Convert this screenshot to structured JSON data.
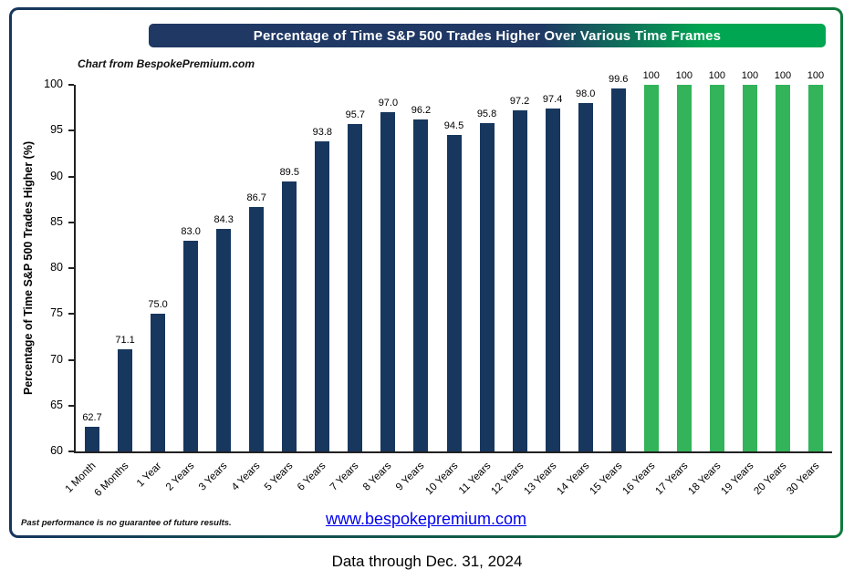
{
  "header": {
    "title": "Percentage of Time S&P 500 Trades Higher Over Various Time Frames"
  },
  "annotations": {
    "source_note": "Chart from BespokePremium.com",
    "footnote": "Past performance is no guarantee of future results.",
    "link": "www.bespokepremium.com",
    "caption": "Data through Dec. 31, 2024"
  },
  "colors": {
    "frame_left": "#16365C",
    "frame_right": "#0E7A3C",
    "title_gradient_left": "#1F3864",
    "title_gradient_right": "#00A651",
    "bar_navy": "#17375E",
    "bar_green": "#33B35A",
    "link_blue": "#0000EE"
  },
  "chart_data": {
    "type": "bar",
    "title": "Percentage of Time S&P 500 Trades Higher Over Various Time Frames",
    "xlabel": "",
    "ylabel": "Percentage of Time S&P 500 Trades Higher (%)",
    "ylim": [
      60,
      100
    ],
    "yticks": [
      60,
      65,
      70,
      75,
      80,
      85,
      90,
      95,
      100
    ],
    "grid": false,
    "legend": null,
    "categories": [
      "1 Month",
      "6 Months",
      "1 Year",
      "2 Years",
      "3 Years",
      "4 Years",
      "5 Years",
      "6 Years",
      "7 Years",
      "8 Years",
      "9 Years",
      "10 Years",
      "11 Years",
      "12 Years",
      "13 Years",
      "14 Years",
      "15 Years",
      "16 Years",
      "17 Years",
      "18 Years",
      "19 Years",
      "20 Years",
      "30 Years"
    ],
    "values": [
      62.7,
      71.1,
      75.0,
      83.0,
      84.3,
      86.7,
      89.5,
      93.8,
      95.7,
      97.0,
      96.2,
      94.5,
      95.8,
      97.2,
      97.4,
      98.0,
      99.6,
      100,
      100,
      100,
      100,
      100,
      100
    ],
    "value_labels": [
      "62.7",
      "71.1",
      "75.0",
      "83.0",
      "84.3",
      "86.7",
      "89.5",
      "93.8",
      "95.7",
      "97.0",
      "96.2",
      "94.5",
      "95.8",
      "97.2",
      "97.4",
      "98.0",
      "99.6",
      "100",
      "100",
      "100",
      "100",
      "100",
      "100"
    ],
    "green_from_index": 17,
    "green_from_category": "16 Years"
  }
}
